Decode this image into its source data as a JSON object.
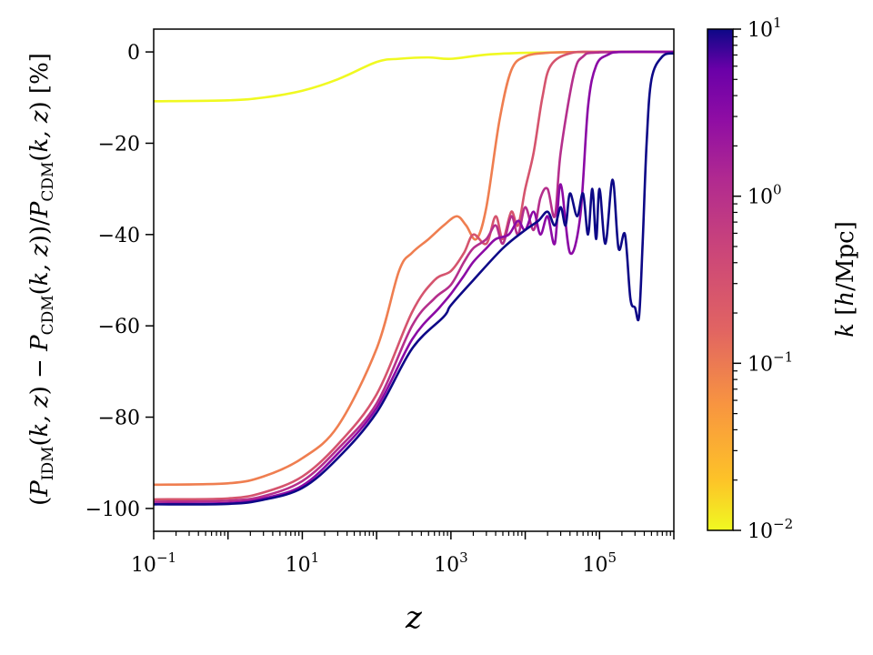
{
  "chart_data": {
    "type": "line",
    "xlabel": "z",
    "ylabel": "(P_IDM(k,z) − P_CDM(k,z))/P_CDM(k,z) [%]",
    "x_scale": "log",
    "xlim": [
      0.1,
      1000000
    ],
    "ylim": [
      -105,
      5
    ],
    "x_ticks": [
      {
        "value": 0.1,
        "base": "10",
        "exp": "−1"
      },
      {
        "value": 10,
        "base": "10",
        "exp": "1"
      },
      {
        "value": 1000,
        "base": "10",
        "exp": "3"
      },
      {
        "value": 100000,
        "base": "10",
        "exp": "5"
      }
    ],
    "y_ticks": [
      {
        "value": 0,
        "label": "0"
      },
      {
        "value": -20,
        "label": "−20"
      },
      {
        "value": -40,
        "label": "−40"
      },
      {
        "value": -60,
        "label": "−60"
      },
      {
        "value": -80,
        "label": "−80"
      },
      {
        "value": -100,
        "label": "−100"
      }
    ],
    "colorbar": {
      "label": "k [h/Mpc]",
      "scale": "log",
      "range": [
        0.01,
        10
      ],
      "colormap": "plasma_r",
      "ticks": [
        {
          "value": 10,
          "base": "10",
          "exp": "1"
        },
        {
          "value": 1,
          "base": "10",
          "exp": "0"
        },
        {
          "value": 0.1,
          "base": "10",
          "exp": "−1"
        },
        {
          "value": 0.01,
          "base": "10",
          "exp": "−2"
        }
      ]
    },
    "series": [
      {
        "k": 0.01,
        "color": "#f0f921",
        "x": [
          0.1,
          1,
          3,
          10,
          30,
          100,
          200,
          500,
          1000,
          3000,
          10000,
          100000,
          1000000
        ],
        "y": [
          -10.8,
          -10.6,
          -10,
          -8.5,
          -6,
          -2.2,
          -1.5,
          -1.2,
          -1.5,
          -0.6,
          -0.2,
          0,
          0
        ]
      },
      {
        "k": 0.1,
        "color": "#ef7e50",
        "x": [
          0.1,
          1,
          3,
          10,
          30,
          100,
          200,
          300,
          500,
          800,
          1200,
          1600,
          2200,
          3000,
          4500,
          6500,
          10000,
          20000,
          60000,
          1000000
        ],
        "y": [
          -94.8,
          -94.5,
          -93,
          -89,
          -82,
          -65,
          -48,
          -44,
          -41,
          -38,
          -36,
          -38,
          -41,
          -34,
          -15,
          -4,
          -1,
          -0.2,
          0,
          0
        ]
      },
      {
        "k": 0.3,
        "color": "#d5546e",
        "x": [
          0.1,
          1,
          3,
          10,
          30,
          100,
          300,
          600,
          1000,
          1500,
          2000,
          3000,
          4000,
          5000,
          6500,
          8000,
          10000,
          13000,
          17000,
          22000,
          40000,
          100000,
          1000000
        ],
        "y": [
          -98,
          -97.8,
          -96.5,
          -93,
          -86,
          -75,
          -57,
          -50,
          -48,
          -44,
          -40,
          -42,
          -36,
          -41,
          -35,
          -38,
          -30,
          -22,
          -10,
          -3,
          -0.3,
          0,
          0
        ]
      },
      {
        "k": 1,
        "color": "#b52f8c",
        "x": [
          0.1,
          1,
          3,
          10,
          30,
          100,
          300,
          600,
          1000,
          1500,
          2000,
          3000,
          4000,
          5000,
          6500,
          8000,
          10000,
          13000,
          16000,
          20000,
          25000,
          30000,
          45000,
          60000,
          100000,
          1000000
        ],
        "y": [
          -98.5,
          -98.3,
          -97.3,
          -94,
          -87,
          -77,
          -60,
          -54,
          -51,
          -46,
          -43,
          -41,
          -38,
          -42,
          -36,
          -40,
          -34,
          -39,
          -32,
          -30,
          -36,
          -22,
          -5,
          -1,
          -0.1,
          0
        ]
      },
      {
        "k": 3,
        "color": "#8b0aa5",
        "x": [
          0.1,
          1,
          3,
          10,
          30,
          100,
          300,
          700,
          1000,
          1500,
          2000,
          3000,
          4000,
          6000,
          8000,
          10000,
          13000,
          16000,
          20000,
          25000,
          30000,
          40000,
          55000,
          70000,
          90000,
          130000,
          200000,
          1000000
        ],
        "y": [
          -99,
          -98.8,
          -97.8,
          -95,
          -88,
          -78,
          -63,
          -56,
          -53,
          -49,
          -46,
          -43,
          -41,
          -40,
          -37,
          -39,
          -35,
          -40,
          -36,
          -42,
          -29,
          -44,
          -36,
          -12,
          -3,
          -0.6,
          0,
          0
        ]
      },
      {
        "k": 10,
        "color": "#0d0887",
        "x": [
          0.1,
          1,
          3,
          10,
          30,
          100,
          300,
          800,
          1000,
          2000,
          5000,
          10000,
          15000,
          20000,
          25000,
          30000,
          35000,
          40000,
          50000,
          60000,
          70000,
          80000,
          90000,
          100000,
          120000,
          150000,
          180000,
          220000,
          260000,
          300000,
          340000,
          380000,
          430000,
          500000,
          700000,
          1000000
        ],
        "y": [
          -99.1,
          -99,
          -98.1,
          -95.5,
          -89,
          -79,
          -65,
          -58,
          -55.5,
          -50,
          -43,
          -39,
          -37,
          -35,
          -38,
          -34,
          -38,
          -31,
          -36,
          -31,
          -40,
          -30,
          -41,
          -30,
          -42,
          -28,
          -43,
          -40,
          -54,
          -56,
          -58,
          -42,
          -20,
          -6,
          -1,
          -0.3
        ]
      }
    ]
  }
}
